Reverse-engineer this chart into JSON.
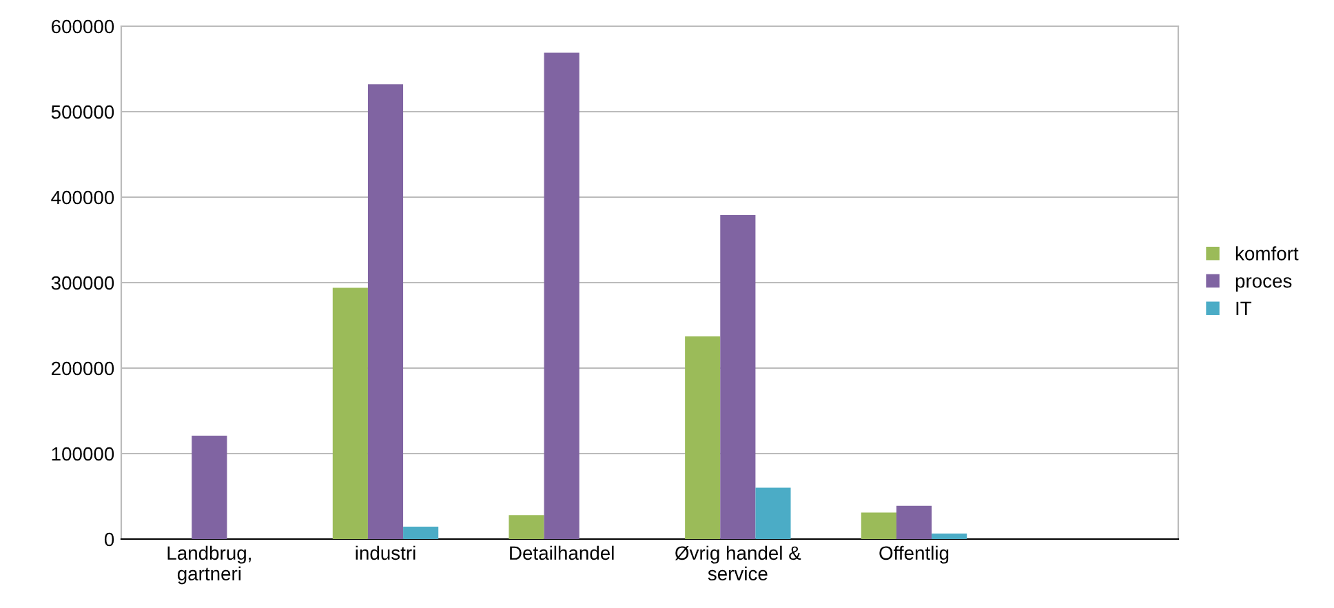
{
  "chart_data": {
    "type": "bar",
    "categories": [
      "Landbrug,\ngartneri",
      "industri",
      "Detailhandel",
      "Øvrig handel &\nservice",
      "Offentlig",
      null
    ],
    "series": [
      {
        "name": "komfort",
        "color": "#9bbb59",
        "values": [
          null,
          294000,
          28000,
          237000,
          31000,
          null
        ]
      },
      {
        "name": "proces",
        "color": "#8064a2",
        "values": [
          121000,
          532000,
          569000,
          379000,
          39000,
          null
        ]
      },
      {
        "name": "IT",
        "color": "#4bacc6",
        "values": [
          null,
          14500,
          null,
          60000,
          6500,
          null
        ]
      }
    ],
    "ylim": [
      0,
      600000
    ],
    "yticks": [
      0,
      100000,
      200000,
      300000,
      400000,
      500000,
      600000
    ],
    "grid": "y",
    "legend": "right"
  }
}
